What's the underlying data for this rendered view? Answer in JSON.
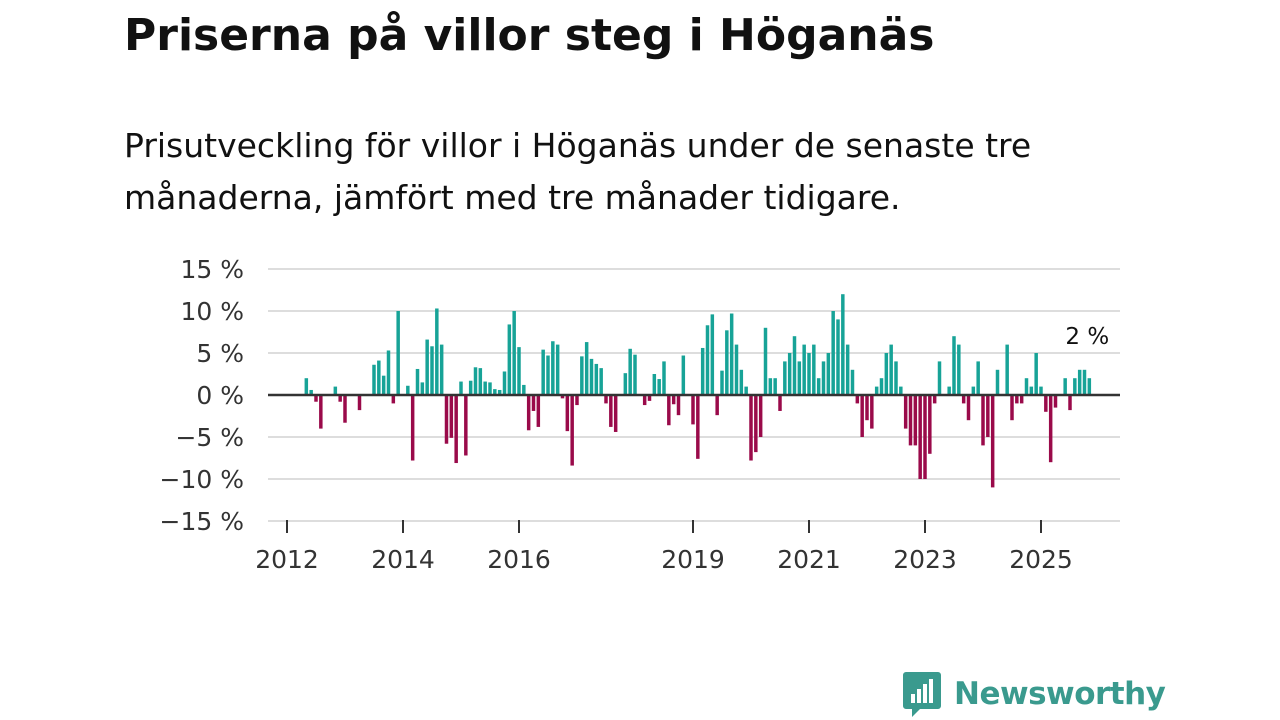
{
  "chart_data": {
    "type": "bar",
    "title": "Priserna på villor steg i Höganäs",
    "subtitle": "Prisutveckling för villor i Höganäs under de senaste tre månaderna, jämfört med tre månader tidigare.",
    "xlabel": "",
    "ylabel": "",
    "ylim": [
      -15,
      15
    ],
    "grid": true,
    "y_ticks": [
      {
        "value": 15,
        "label": "15 %"
      },
      {
        "value": 10,
        "label": "10 %"
      },
      {
        "value": 5,
        "label": "5 %"
      },
      {
        "value": 0,
        "label": "0 %"
      },
      {
        "value": -5,
        "label": "−5 %"
      },
      {
        "value": -10,
        "label": "−10 %"
      },
      {
        "value": -15,
        "label": "−15 %"
      }
    ],
    "x_ticks": [
      {
        "year": 2012,
        "label": "2012"
      },
      {
        "year": 2014,
        "label": "2014"
      },
      {
        "year": 2016,
        "label": "2016"
      },
      {
        "year": 2019,
        "label": "2019"
      },
      {
        "year": 2021,
        "label": "2021"
      },
      {
        "year": 2023,
        "label": "2023"
      },
      {
        "year": 2025,
        "label": "2025"
      }
    ],
    "start": {
      "year": 2012,
      "month": 5
    },
    "values": [
      2,
      0.6,
      -0.8,
      -4,
      0,
      0,
      1,
      -0.8,
      -3.3,
      0,
      0,
      -1.8,
      0,
      0,
      3.6,
      4.1,
      2.3,
      5.3,
      -1,
      10,
      0,
      1.1,
      -7.8,
      3.1,
      1.5,
      6.6,
      5.8,
      10.3,
      6,
      -5.8,
      -5.1,
      -8.1,
      1.6,
      -7.2,
      1.7,
      3.3,
      3.2,
      1.6,
      1.5,
      0.7,
      0.6,
      2.8,
      8.4,
      10,
      5.7,
      1.2,
      -4.2,
      -1.9,
      -3.8,
      5.4,
      4.7,
      6.4,
      6,
      -0.4,
      -4.3,
      -8.4,
      -1.2,
      4.6,
      6.3,
      4.3,
      3.7,
      3.2,
      -1,
      -3.8,
      -4.4,
      0,
      2.6,
      5.5,
      4.8,
      0,
      -1.2,
      -0.7,
      2.5,
      1.9,
      4,
      -3.6,
      -1.1,
      -2.4,
      4.7,
      0,
      -3.5,
      -7.6,
      5.6,
      8.3,
      9.6,
      -2.4,
      2.9,
      7.7,
      9.7,
      6,
      3,
      1,
      -7.8,
      -6.8,
      -5,
      8,
      2,
      2,
      -1.9,
      4,
      5,
      7,
      4,
      6,
      5,
      6,
      2,
      4,
      5,
      10,
      9,
      12,
      6,
      3,
      -1,
      -5,
      -3,
      -4,
      1,
      2,
      5,
      6,
      4,
      1,
      -4,
      -6,
      -6,
      -10,
      -10,
      -7,
      -1,
      4,
      0,
      1,
      7,
      6,
      -1,
      -3,
      1,
      4,
      -6,
      -5,
      -11,
      3,
      0,
      6,
      -3,
      -1,
      -1,
      2,
      1,
      5,
      1,
      -2,
      -8,
      -1.5,
      0,
      2,
      -1.8,
      2,
      3,
      3,
      2
    ],
    "colors": {
      "positive": "#17a397",
      "negative": "#9a0a4a"
    },
    "annotation": {
      "label": "2 %",
      "value": 2
    }
  },
  "logo": {
    "text": "Newsworthy",
    "icon": "newsworthy-bars-icon"
  }
}
